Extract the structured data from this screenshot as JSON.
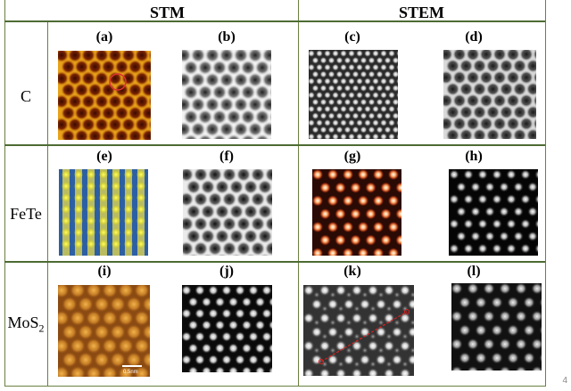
{
  "headers": {
    "stm": "STM",
    "stem": "STEM"
  },
  "rows": [
    {
      "label": "C",
      "panels": [
        "(a)",
        "(b)",
        "(c)",
        "(d)"
      ]
    },
    {
      "label": "FeTe",
      "panels": [
        "(e)",
        "(f)",
        "(g)",
        "(h)"
      ]
    },
    {
      "label_main": "MoS",
      "label_sub": "2",
      "panels": [
        "(i)",
        "(j)",
        "(k)",
        "(l)"
      ]
    }
  ],
  "scale_bar": "0.5nm",
  "page_number": "4"
}
